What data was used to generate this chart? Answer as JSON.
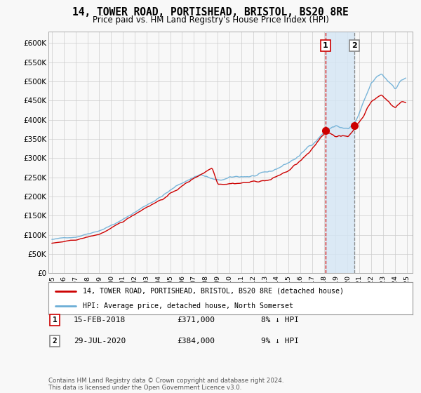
{
  "title": "14, TOWER ROAD, PORTISHEAD, BRISTOL, BS20 8RE",
  "subtitle": "Price paid vs. HM Land Registry's House Price Index (HPI)",
  "ylabel_ticks": [
    "£0",
    "£50K",
    "£100K",
    "£150K",
    "£200K",
    "£250K",
    "£300K",
    "£350K",
    "£400K",
    "£450K",
    "£500K",
    "£550K",
    "£600K"
  ],
  "ytick_vals": [
    0,
    50000,
    100000,
    150000,
    200000,
    250000,
    300000,
    350000,
    400000,
    450000,
    500000,
    550000,
    600000
  ],
  "ylim": [
    0,
    630000
  ],
  "xlim_start": 1994.7,
  "xlim_end": 2025.5,
  "transaction1_date": 2018.12,
  "transaction1_price": 371000,
  "transaction1_label": "1",
  "transaction2_date": 2020.57,
  "transaction2_price": 384000,
  "transaction2_label": "2",
  "hpi_color": "#6baed6",
  "price_color": "#cc0000",
  "marker_color": "#cc0000",
  "vline1_color": "#cc0000",
  "vline2_color": "#888888",
  "shade_color": "#d4e6f5",
  "grid_color": "#cccccc",
  "background_color": "#f8f8f8",
  "legend1_text": "14, TOWER ROAD, PORTISHEAD, BRISTOL, BS20 8RE (detached house)",
  "legend2_text": "HPI: Average price, detached house, North Somerset",
  "note1_label": "1",
  "note1_date": "15-FEB-2018",
  "note1_price": "£371,000",
  "note1_pct": "8% ↓ HPI",
  "note2_label": "2",
  "note2_date": "29-JUL-2020",
  "note2_price": "£384,000",
  "note2_pct": "9% ↓ HPI",
  "footer": "Contains HM Land Registry data © Crown copyright and database right 2024.\nThis data is licensed under the Open Government Licence v3.0."
}
